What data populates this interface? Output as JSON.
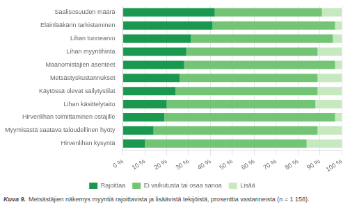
{
  "chart_data": {
    "type": "bar",
    "orientation": "horizontal",
    "stacked": true,
    "categories": [
      "Saalisosuuden määrä",
      "Eläinlääkärin tarkistaminen",
      "Lihan tunnearvo",
      "Lihan myyntihinta",
      "Maanomistajien asenteet",
      "Metsästyskustannukset",
      "Käytössä olevat säilytystilat",
      "Lihan käsittelytaito",
      "Hirvenlihan toimittaminen ostajille",
      "Myymisästä saatava taloudellinen hyöty",
      "Hirvenlihan kysyntä"
    ],
    "series": [
      {
        "name": "Rajoittaa",
        "color": "#1a9850",
        "values": [
          42,
          41,
          31,
          29,
          28,
          26,
          24,
          20,
          19,
          14,
          10
        ]
      },
      {
        "name": "Ei vaikutusta tai osaa sanoa",
        "color": "#74c476",
        "values": [
          49,
          56,
          65,
          60,
          69,
          63,
          65,
          68,
          78,
          75,
          74
        ]
      },
      {
        "name": "Lisää",
        "color": "#c7e9c0",
        "values": [
          9,
          3,
          4,
          11,
          3,
          11,
          11,
          12,
          3,
          11,
          16
        ]
      }
    ],
    "xlim": [
      0,
      100
    ],
    "xticks": [
      {
        "value": 0,
        "label": "0 %"
      },
      {
        "value": 10,
        "label": "10 %"
      },
      {
        "value": 20,
        "label": "20 %"
      },
      {
        "value": 30,
        "label": "30 %"
      },
      {
        "value": 40,
        "label": "40 %"
      },
      {
        "value": 50,
        "label": "50 %"
      },
      {
        "value": 60,
        "label": "60 %"
      },
      {
        "value": 70,
        "label": "70 %"
      },
      {
        "value": 80,
        "label": "80 %"
      },
      {
        "value": 90,
        "label": "90 %"
      },
      {
        "value": 100,
        "label": "100 %"
      }
    ],
    "grid": true,
    "legend": "bottom",
    "annotations": [
      "Kuva 9.",
      "Metsästäjien näkemys myyntiä rajoittavista ja lisäävistä tekijöistä, prosenttia vastanneista (n = 1 158)."
    ]
  }
}
